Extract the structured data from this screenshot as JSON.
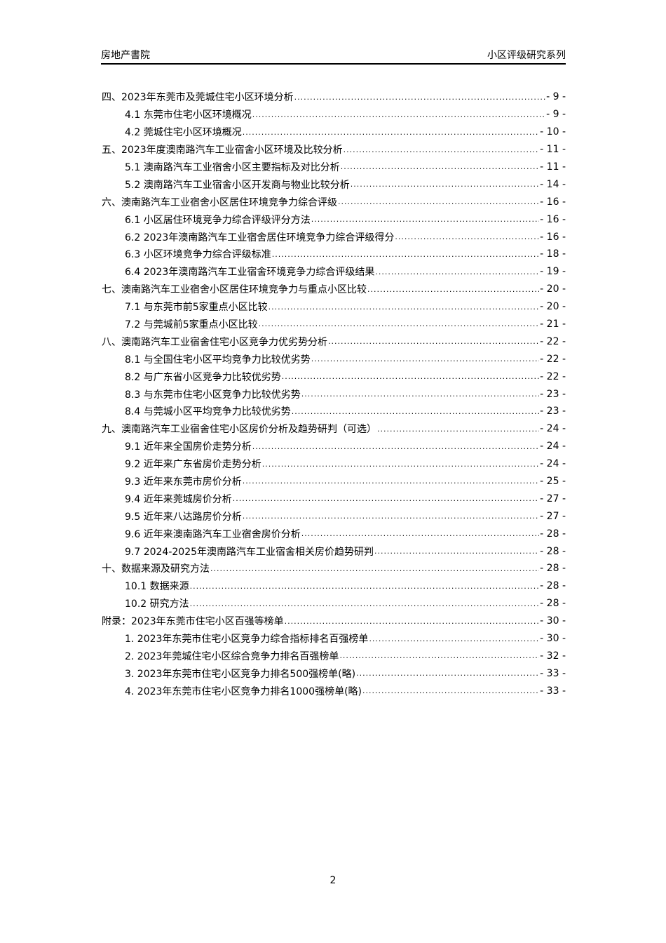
{
  "header": {
    "left": "房地产書院",
    "right": "小区评级研究系列"
  },
  "toc": [
    {
      "level": 1,
      "title": "四、2023年东莞市及莞城住宅小区环境分析",
      "page": "- 9 -"
    },
    {
      "level": 2,
      "title": "4.1 东莞市住宅小区环境概况",
      "page": "- 9 -"
    },
    {
      "level": 2,
      "title": "4.2 莞城住宅小区环境概况",
      "page": "- 10 -"
    },
    {
      "level": 1,
      "title": "五、2023年度澳南路汽车工业宿舍小区环境及比较分析",
      "page": "- 11 -"
    },
    {
      "level": 2,
      "title": "5.1 澳南路汽车工业宿舍小区主要指标及对比分析",
      "page": "- 11 -"
    },
    {
      "level": 2,
      "title": "5.2 澳南路汽车工业宿舍小区开发商与物业比较分析",
      "page": "- 14 -"
    },
    {
      "level": 1,
      "title": "六、澳南路汽车工业宿舍小区居住环境竞争力综合评级",
      "page": "- 16 -"
    },
    {
      "level": 2,
      "title": "6.1 小区居住环境竞争力综合评级评分方法",
      "page": "- 16 -"
    },
    {
      "level": 2,
      "title": "6.2 2023年澳南路汽车工业宿舍居住环境竞争力综合评级得分",
      "page": "- 16 -"
    },
    {
      "level": 2,
      "title": "6.3 小区环境竞争力综合评级标准",
      "page": "- 18 -"
    },
    {
      "level": 2,
      "title": "6.4 2023年澳南路汽车工业宿舍环境竞争力综合评级结果",
      "page": "- 19 -"
    },
    {
      "level": 1,
      "title": "七、澳南路汽车工业宿舍小区居住环境竞争力与重点小区比较",
      "page": "- 20 -"
    },
    {
      "level": 2,
      "title": "7.1 与东莞市前5家重点小区比较",
      "page": "- 20 -"
    },
    {
      "level": 2,
      "title": "7.2 与莞城前5家重点小区比较",
      "page": "- 21 -"
    },
    {
      "level": 1,
      "title": "八、澳南路汽车工业宿舍住宅小区竞争力优劣势分析",
      "page": "- 22 -"
    },
    {
      "level": 2,
      "title": "8.1 与全国住宅小区平均竞争力比较优劣势",
      "page": "- 22 -"
    },
    {
      "level": 2,
      "title": "8.2 与广东省小区竞争力比较优劣势",
      "page": "- 22 -"
    },
    {
      "level": 2,
      "title": "8.3 与东莞市住宅小区竞争力比较优劣势",
      "page": "- 23 -"
    },
    {
      "level": 2,
      "title": "8.4 与莞城小区平均竞争力比较优劣势",
      "page": "- 23 -"
    },
    {
      "level": 1,
      "title": "九、澳南路汽车工业宿舍住宅小区房价分析及趋势研判（可选）",
      "page": "- 24 -"
    },
    {
      "level": 2,
      "title": "9.1 近年来全国房价走势分析",
      "page": "- 24 -"
    },
    {
      "level": 2,
      "title": "9.2 近年来广东省房价走势分析",
      "page": "- 24 -"
    },
    {
      "level": 2,
      "title": "9.3 近年来东莞市房价分析",
      "page": "- 25 -"
    },
    {
      "level": 2,
      "title": "9.4 近年来莞城房价分析",
      "page": "- 27 -"
    },
    {
      "level": 2,
      "title": "9.5 近年来八达路房价分析",
      "page": "- 27 -"
    },
    {
      "level": 2,
      "title": "9.6 近年来澳南路汽车工业宿舍房价分析",
      "page": "- 28 -"
    },
    {
      "level": 2,
      "title": "9.7 2024-2025年澳南路汽车工业宿舍相关房价趋势研判",
      "page": "- 28 -"
    },
    {
      "level": 1,
      "title": "十、数据来源及研究方法",
      "page": "- 28 -"
    },
    {
      "level": 2,
      "title": "10.1 数据来源",
      "page": "- 28 -"
    },
    {
      "level": 2,
      "title": "10.2 研究方法",
      "page": "- 28 -"
    },
    {
      "level": 1,
      "title": "附录：2023年东莞市住宅小区百强等榜单",
      "page": "- 30 -"
    },
    {
      "level": 2,
      "title": "1.  2023年东莞市住宅小区竞争力综合指标排名百强榜单",
      "page": "- 30 -"
    },
    {
      "level": 2,
      "title": "2.  2023年莞城住宅小区综合竞争力排名百强榜单",
      "page": "- 32 -"
    },
    {
      "level": 2,
      "title": "3.  2023年东莞市住宅小区竞争力排名500强榜单(略)",
      "page": "- 33 -"
    },
    {
      "level": 2,
      "title": "4.  2023年东莞市住宅小区竞争力排名1000强榜单(略)",
      "page": "- 33 -"
    }
  ],
  "page_number": "2"
}
